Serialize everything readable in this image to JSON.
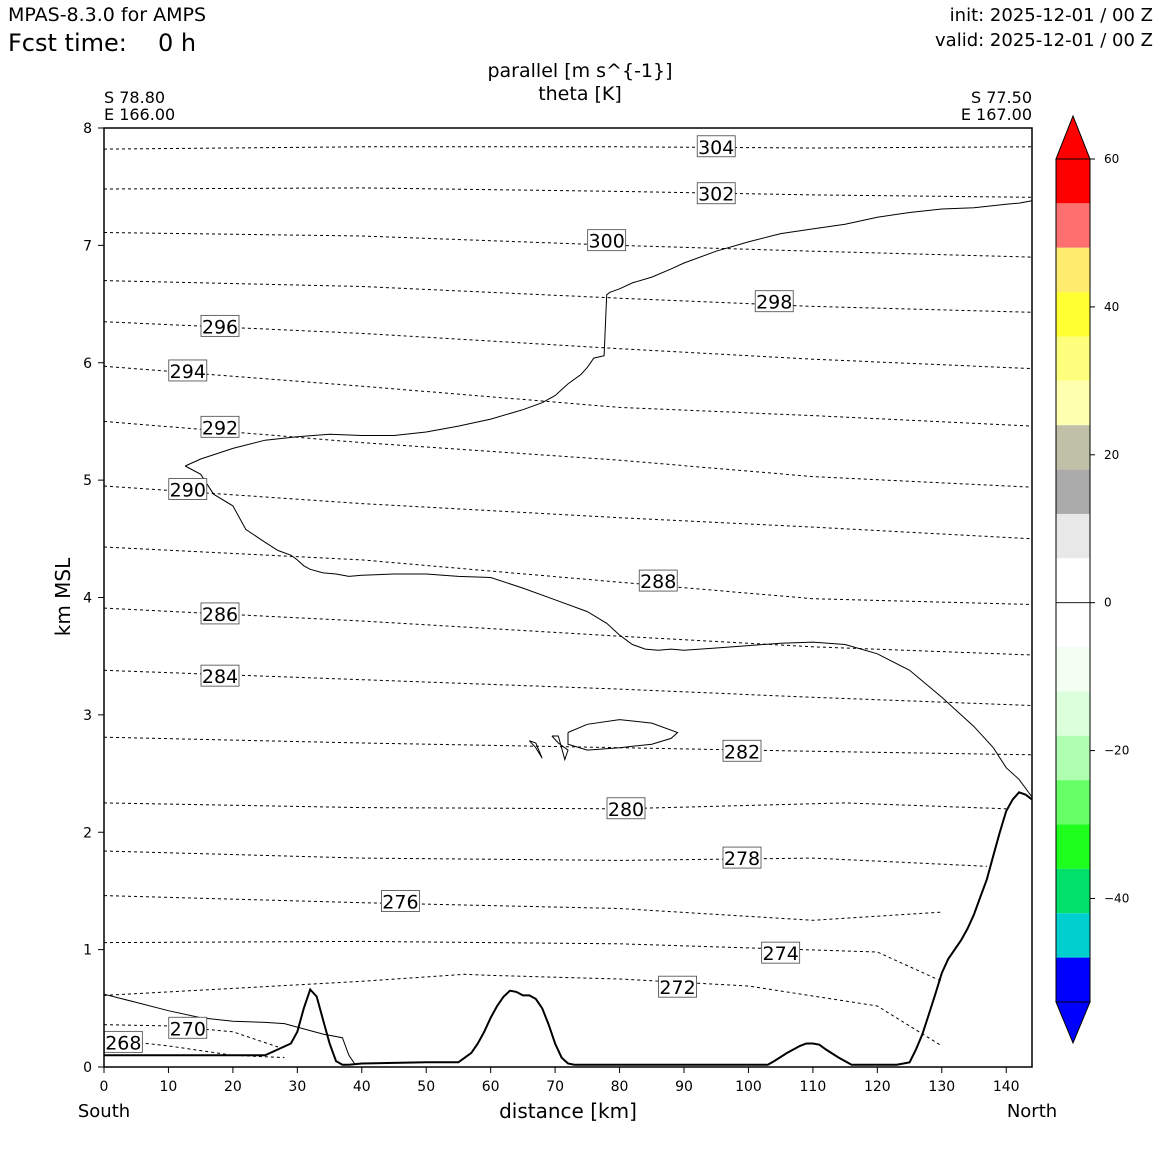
{
  "header": {
    "model": "MPAS-8.3.0 for AMPS",
    "fcst_label": "Fcst time:",
    "fcst_value": "0 h",
    "init": "init: 2025-12-01 / 00 Z",
    "valid": "valid: 2025-12-01 / 00 Z"
  },
  "chart_data": {
    "type": "line",
    "title": "parallel [m s^{-1}]",
    "subtitle": "theta [K]",
    "xlabel": "distance [km]",
    "ylabel": "km MSL",
    "xlim": [
      0,
      144
    ],
    "ylim": [
      0,
      8
    ],
    "x_ticks": [
      "0",
      "10",
      "20",
      "30",
      "40",
      "50",
      "60",
      "70",
      "80",
      "90",
      "100",
      "110",
      "120",
      "130",
      "140"
    ],
    "y_ticks": [
      "0",
      "1",
      "2",
      "3",
      "4",
      "5",
      "6",
      "7",
      "8"
    ],
    "left_endpoint": {
      "lat": "S 78.80",
      "lon": "E 166.00",
      "side": "South"
    },
    "right_endpoint": {
      "lat": "S 77.50",
      "lon": "E 167.00",
      "side": "North"
    },
    "colorbar": {
      "tick_labels": [
        "60",
        "40",
        "20",
        "0",
        "−20",
        "−40"
      ],
      "colors": [
        "#ff0000",
        "#ff0000",
        "#ff6f6f",
        "#ffeb6e",
        "#ffff32",
        "#ffff7e",
        "#ffffb0",
        "#c0c0a8",
        "#aaaaaa",
        "#e8e8e8",
        "#ffffff",
        "#ffffff",
        "#f3fff3",
        "#dcffdc",
        "#b0ffb0",
        "#66ff66",
        "#1eff1e",
        "#00e06a",
        "#00cfcf",
        "#0000ff",
        "#0000ff"
      ]
    },
    "theta_series": [
      {
        "name": "268",
        "x": [
          0,
          10,
          20,
          28
        ],
        "y": [
          0.24,
          0.18,
          0.1,
          0.08
        ],
        "label_x": 3,
        "label_y": 0.21
      },
      {
        "name": "270",
        "x": [
          0,
          10,
          20,
          27
        ],
        "y": [
          0.36,
          0.35,
          0.3,
          0.17
        ],
        "label_x": 13,
        "label_y": 0.33
      },
      {
        "name": "272",
        "x": [
          0,
          20,
          40,
          56,
          60,
          80,
          100,
          120,
          130
        ],
        "y": [
          0.61,
          0.67,
          0.73,
          0.79,
          0.78,
          0.75,
          0.69,
          0.52,
          0.18
        ],
        "label_x": 89,
        "label_y": 0.68
      },
      {
        "name": "274",
        "x": [
          0,
          40,
          80,
          120,
          130
        ],
        "y": [
          1.06,
          1.07,
          1.05,
          0.98,
          0.73
        ],
        "label_x": 105,
        "label_y": 0.97
      },
      {
        "name": "276",
        "x": [
          0,
          40,
          80,
          110,
          130
        ],
        "y": [
          1.46,
          1.4,
          1.35,
          1.25,
          1.32
        ],
        "label_x": 46,
        "label_y": 1.41
      },
      {
        "name": "278",
        "x": [
          0,
          40,
          80,
          110,
          137
        ],
        "y": [
          1.84,
          1.78,
          1.76,
          1.78,
          1.71
        ],
        "label_x": 99,
        "label_y": 1.78
      },
      {
        "name": "280",
        "x": [
          0,
          40,
          80,
          115,
          140
        ],
        "y": [
          2.25,
          2.21,
          2.2,
          2.25,
          2.2
        ],
        "label_x": 81,
        "label_y": 2.2
      },
      {
        "name": "282",
        "x": [
          0,
          40,
          80,
          110,
          144
        ],
        "y": [
          2.81,
          2.76,
          2.72,
          2.69,
          2.66
        ],
        "label_x": 99,
        "label_y": 2.69
      },
      {
        "name": "284",
        "x": [
          0,
          40,
          80,
          110,
          144
        ],
        "y": [
          3.38,
          3.3,
          3.22,
          3.15,
          3.08
        ],
        "label_x": 18,
        "label_y": 3.33
      },
      {
        "name": "286",
        "x": [
          0,
          40,
          80,
          110,
          144
        ],
        "y": [
          3.91,
          3.8,
          3.67,
          3.58,
          3.51
        ],
        "label_x": 18,
        "label_y": 3.86
      },
      {
        "name": "288",
        "x": [
          0,
          40,
          80,
          110,
          144
        ],
        "y": [
          4.43,
          4.32,
          4.13,
          3.99,
          3.94
        ],
        "label_x": 86,
        "label_y": 4.14
      },
      {
        "name": "290",
        "x": [
          0,
          40,
          80,
          110,
          144
        ],
        "y": [
          4.95,
          4.8,
          4.68,
          4.6,
          4.5
        ],
        "label_x": 13,
        "label_y": 4.92
      },
      {
        "name": "292",
        "x": [
          0,
          40,
          80,
          110,
          144
        ],
        "y": [
          5.5,
          5.32,
          5.17,
          5.03,
          4.94
        ],
        "label_x": 18,
        "label_y": 5.45
      },
      {
        "name": "294",
        "x": [
          0,
          40,
          80,
          110,
          144
        ],
        "y": [
          5.97,
          5.8,
          5.62,
          5.55,
          5.46
        ],
        "label_x": 13,
        "label_y": 5.93
      },
      {
        "name": "296",
        "x": [
          0,
          40,
          80,
          110,
          144
        ],
        "y": [
          6.35,
          6.25,
          6.12,
          6.03,
          5.95
        ],
        "label_x": 18,
        "label_y": 6.31
      },
      {
        "name": "298",
        "x": [
          0,
          40,
          80,
          110,
          144
        ],
        "y": [
          6.7,
          6.65,
          6.55,
          6.48,
          6.43
        ],
        "label_x": 104,
        "label_y": 6.52
      },
      {
        "name": "300",
        "x": [
          0,
          40,
          80,
          110,
          144
        ],
        "y": [
          7.11,
          7.08,
          7.0,
          6.95,
          6.9
        ],
        "label_x": 78,
        "label_y": 7.04
      },
      {
        "name": "302",
        "x": [
          0,
          40,
          80,
          110,
          144
        ],
        "y": [
          7.48,
          7.49,
          7.46,
          7.43,
          7.41
        ],
        "label_x": 95,
        "label_y": 7.44
      },
      {
        "name": "304",
        "x": [
          0,
          40,
          80,
          110,
          144
        ],
        "y": [
          7.82,
          7.84,
          7.84,
          7.83,
          7.84
        ],
        "label_x": 95,
        "label_y": 7.84
      }
    ],
    "terrain": {
      "x": [
        0,
        20,
        25,
        27,
        29,
        30,
        31,
        32,
        33,
        34,
        35,
        36,
        37,
        38,
        40,
        50,
        55,
        56,
        57,
        58,
        59,
        60,
        61,
        62,
        63,
        64,
        65,
        66,
        67,
        68,
        69,
        70,
        71,
        72,
        73,
        75,
        80,
        90,
        100,
        103,
        104,
        106,
        108,
        109,
        110,
        111,
        112,
        114,
        116,
        118,
        120,
        123,
        125,
        126,
        127,
        128,
        129,
        130,
        131,
        132,
        133,
        134,
        135,
        136,
        137,
        138,
        139,
        140,
        141,
        142,
        143,
        144
      ],
      "y": [
        0.1,
        0.1,
        0.1,
        0.15,
        0.2,
        0.3,
        0.5,
        0.66,
        0.6,
        0.4,
        0.2,
        0.05,
        0.02,
        0.02,
        0.03,
        0.04,
        0.04,
        0.08,
        0.12,
        0.2,
        0.3,
        0.42,
        0.52,
        0.6,
        0.65,
        0.64,
        0.61,
        0.61,
        0.58,
        0.5,
        0.36,
        0.2,
        0.08,
        0.03,
        0.02,
        0.02,
        0.02,
        0.02,
        0.02,
        0.02,
        0.05,
        0.12,
        0.18,
        0.2,
        0.2,
        0.19,
        0.15,
        0.08,
        0.02,
        0.02,
        0.02,
        0.02,
        0.04,
        0.15,
        0.28,
        0.45,
        0.62,
        0.8,
        0.92,
        1.0,
        1.08,
        1.18,
        1.3,
        1.45,
        1.6,
        1.8,
        2.0,
        2.18,
        2.28,
        2.34,
        2.32,
        2.28
      ]
    },
    "wind_zero_contours": [
      {
        "x": [
          12.6,
          15,
          20,
          25,
          30,
          35,
          40,
          45,
          50,
          55,
          60,
          65,
          68,
          70,
          72,
          74,
          75,
          76,
          77.6,
          78,
          78.5,
          79,
          80,
          82,
          85,
          88,
          90,
          95,
          100,
          105,
          110,
          115,
          120,
          125,
          130,
          135,
          140,
          142,
          144
        ],
        "y": [
          5.12,
          5.18,
          5.27,
          5.34,
          5.37,
          5.39,
          5.38,
          5.38,
          5.41,
          5.46,
          5.52,
          5.6,
          5.66,
          5.72,
          5.82,
          5.9,
          5.96,
          6.04,
          6.06,
          6.58,
          6.6,
          6.61,
          6.63,
          6.68,
          6.73,
          6.8,
          6.85,
          6.95,
          7.03,
          7.1,
          7.14,
          7.18,
          7.24,
          7.28,
          7.31,
          7.32,
          7.35,
          7.36,
          7.38
        ]
      },
      {
        "x": [
          12.6,
          15,
          17,
          20,
          22,
          25,
          27,
          29,
          30,
          31,
          32,
          34,
          36,
          38,
          40,
          45,
          50,
          55,
          60,
          65,
          70,
          75,
          78,
          80,
          82,
          84,
          86,
          88,
          90,
          95,
          100,
          105,
          110,
          115,
          120,
          125,
          130,
          135,
          138,
          140,
          142,
          144
        ],
        "y": [
          5.12,
          5.05,
          4.88,
          4.78,
          4.58,
          4.47,
          4.4,
          4.36,
          4.32,
          4.27,
          4.24,
          4.21,
          4.2,
          4.18,
          4.19,
          4.2,
          4.2,
          4.18,
          4.17,
          4.08,
          3.98,
          3.88,
          3.78,
          3.68,
          3.6,
          3.56,
          3.55,
          3.56,
          3.55,
          3.57,
          3.59,
          3.61,
          3.62,
          3.6,
          3.52,
          3.38,
          3.15,
          2.9,
          2.72,
          2.55,
          2.45,
          2.3
        ]
      },
      {
        "x": [
          72,
          75,
          80,
          85,
          89,
          88,
          85,
          80,
          75,
          72,
          72
        ],
        "y": [
          2.85,
          2.92,
          2.96,
          2.93,
          2.85,
          2.8,
          2.75,
          2.72,
          2.7,
          2.75,
          2.85
        ]
      },
      {
        "x": [
          69.5,
          70.5,
          71.5,
          72,
          70.5,
          69.5
        ],
        "y": [
          2.82,
          2.82,
          2.62,
          2.7,
          2.76,
          2.82
        ]
      },
      {
        "x": [
          66,
          67,
          68,
          67,
          66
        ],
        "y": [
          2.78,
          2.76,
          2.63,
          2.72,
          2.78
        ]
      },
      {
        "x": [
          0,
          5,
          10,
          15,
          20,
          25,
          28,
          30,
          34,
          37,
          38,
          39
        ],
        "y": [
          0.62,
          0.55,
          0.48,
          0.42,
          0.39,
          0.38,
          0.37,
          0.34,
          0.28,
          0.25,
          0.1,
          0.02
        ]
      }
    ]
  }
}
